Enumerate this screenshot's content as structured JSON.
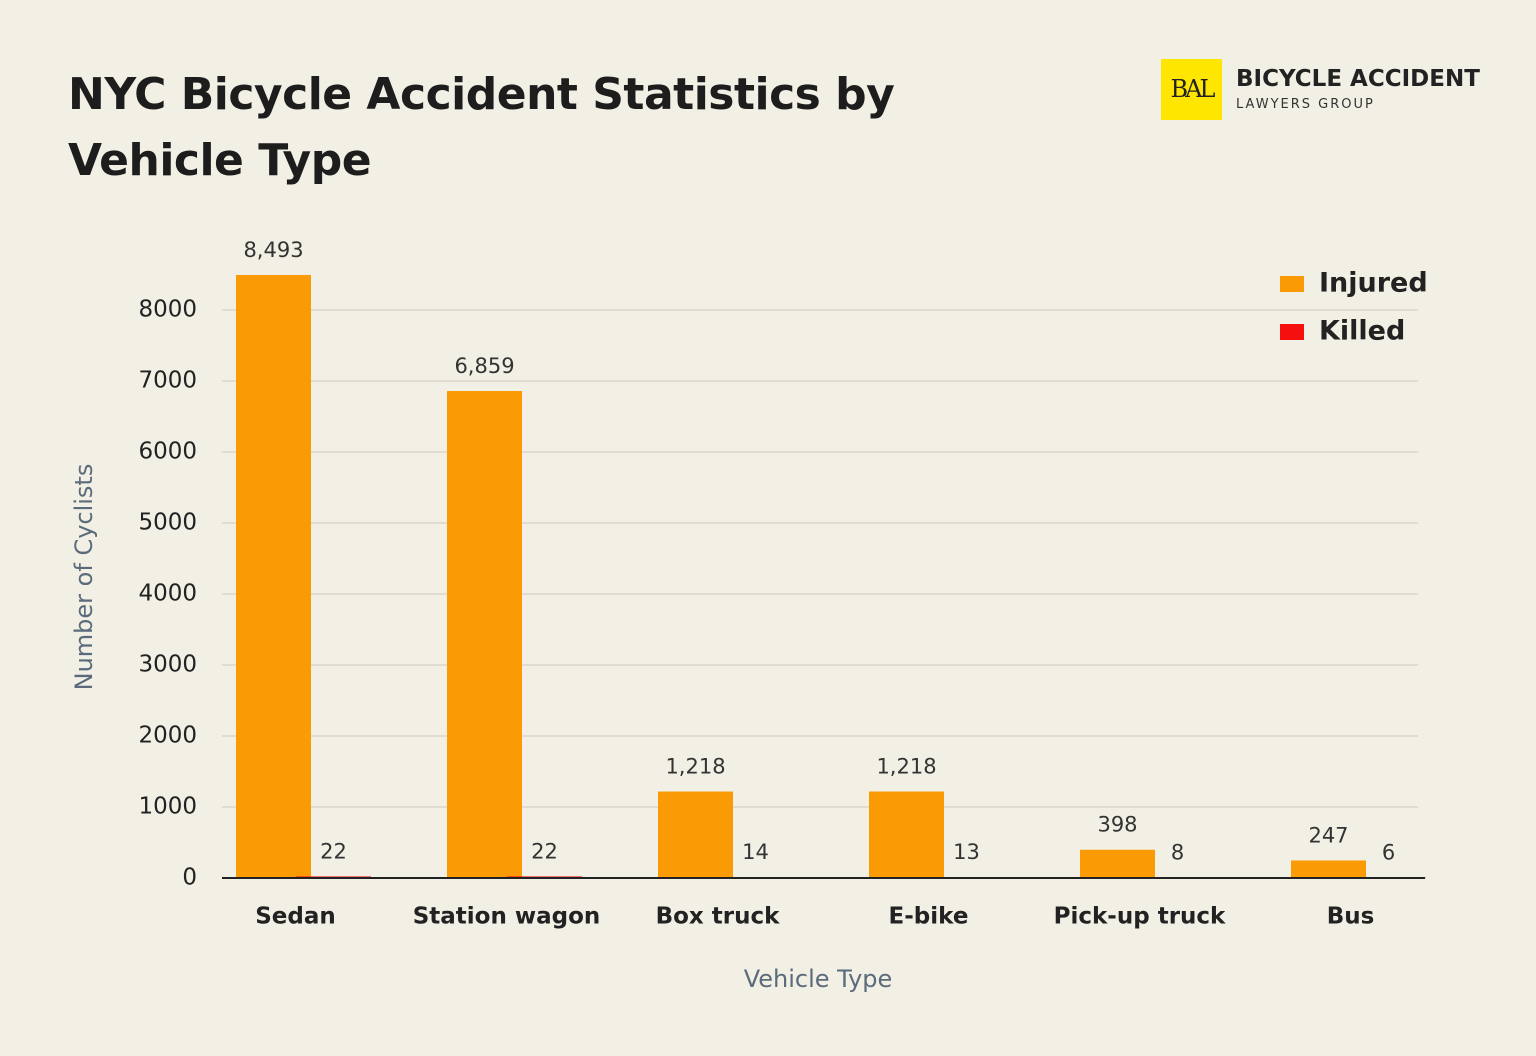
{
  "logo": {
    "mark": "BAL",
    "name": "BICYCLE ACCIDENT",
    "tagline": "LAWYERS GROUP"
  },
  "chart_data": {
    "type": "bar",
    "title": "NYC Bicycle Accident Statistics by Vehicle Type",
    "x_label": "Vehicle Type",
    "y_label": "Number of Cyclists",
    "categories": [
      "Sedan",
      "Station wagon",
      "Box truck",
      "E-bike",
      "Pick-up truck",
      "Bus"
    ],
    "series": [
      {
        "name": "Injured",
        "color": "#fa9b06",
        "values": [
          8493,
          6859,
          1218,
          1218,
          398,
          247
        ],
        "value_labels": [
          "8,493",
          "6,859",
          "1,218",
          "1,218",
          "398",
          "247"
        ]
      },
      {
        "name": "Killed",
        "color": "#f50f0f",
        "values": [
          22,
          22,
          14,
          13,
          8,
          6
        ]
      }
    ],
    "ylim": [
      0,
      9000
    ],
    "yticks": [
      0,
      1000,
      2000,
      3000,
      4000,
      5000,
      6000,
      7000,
      8000
    ],
    "grid": true,
    "legend": "top-right"
  }
}
